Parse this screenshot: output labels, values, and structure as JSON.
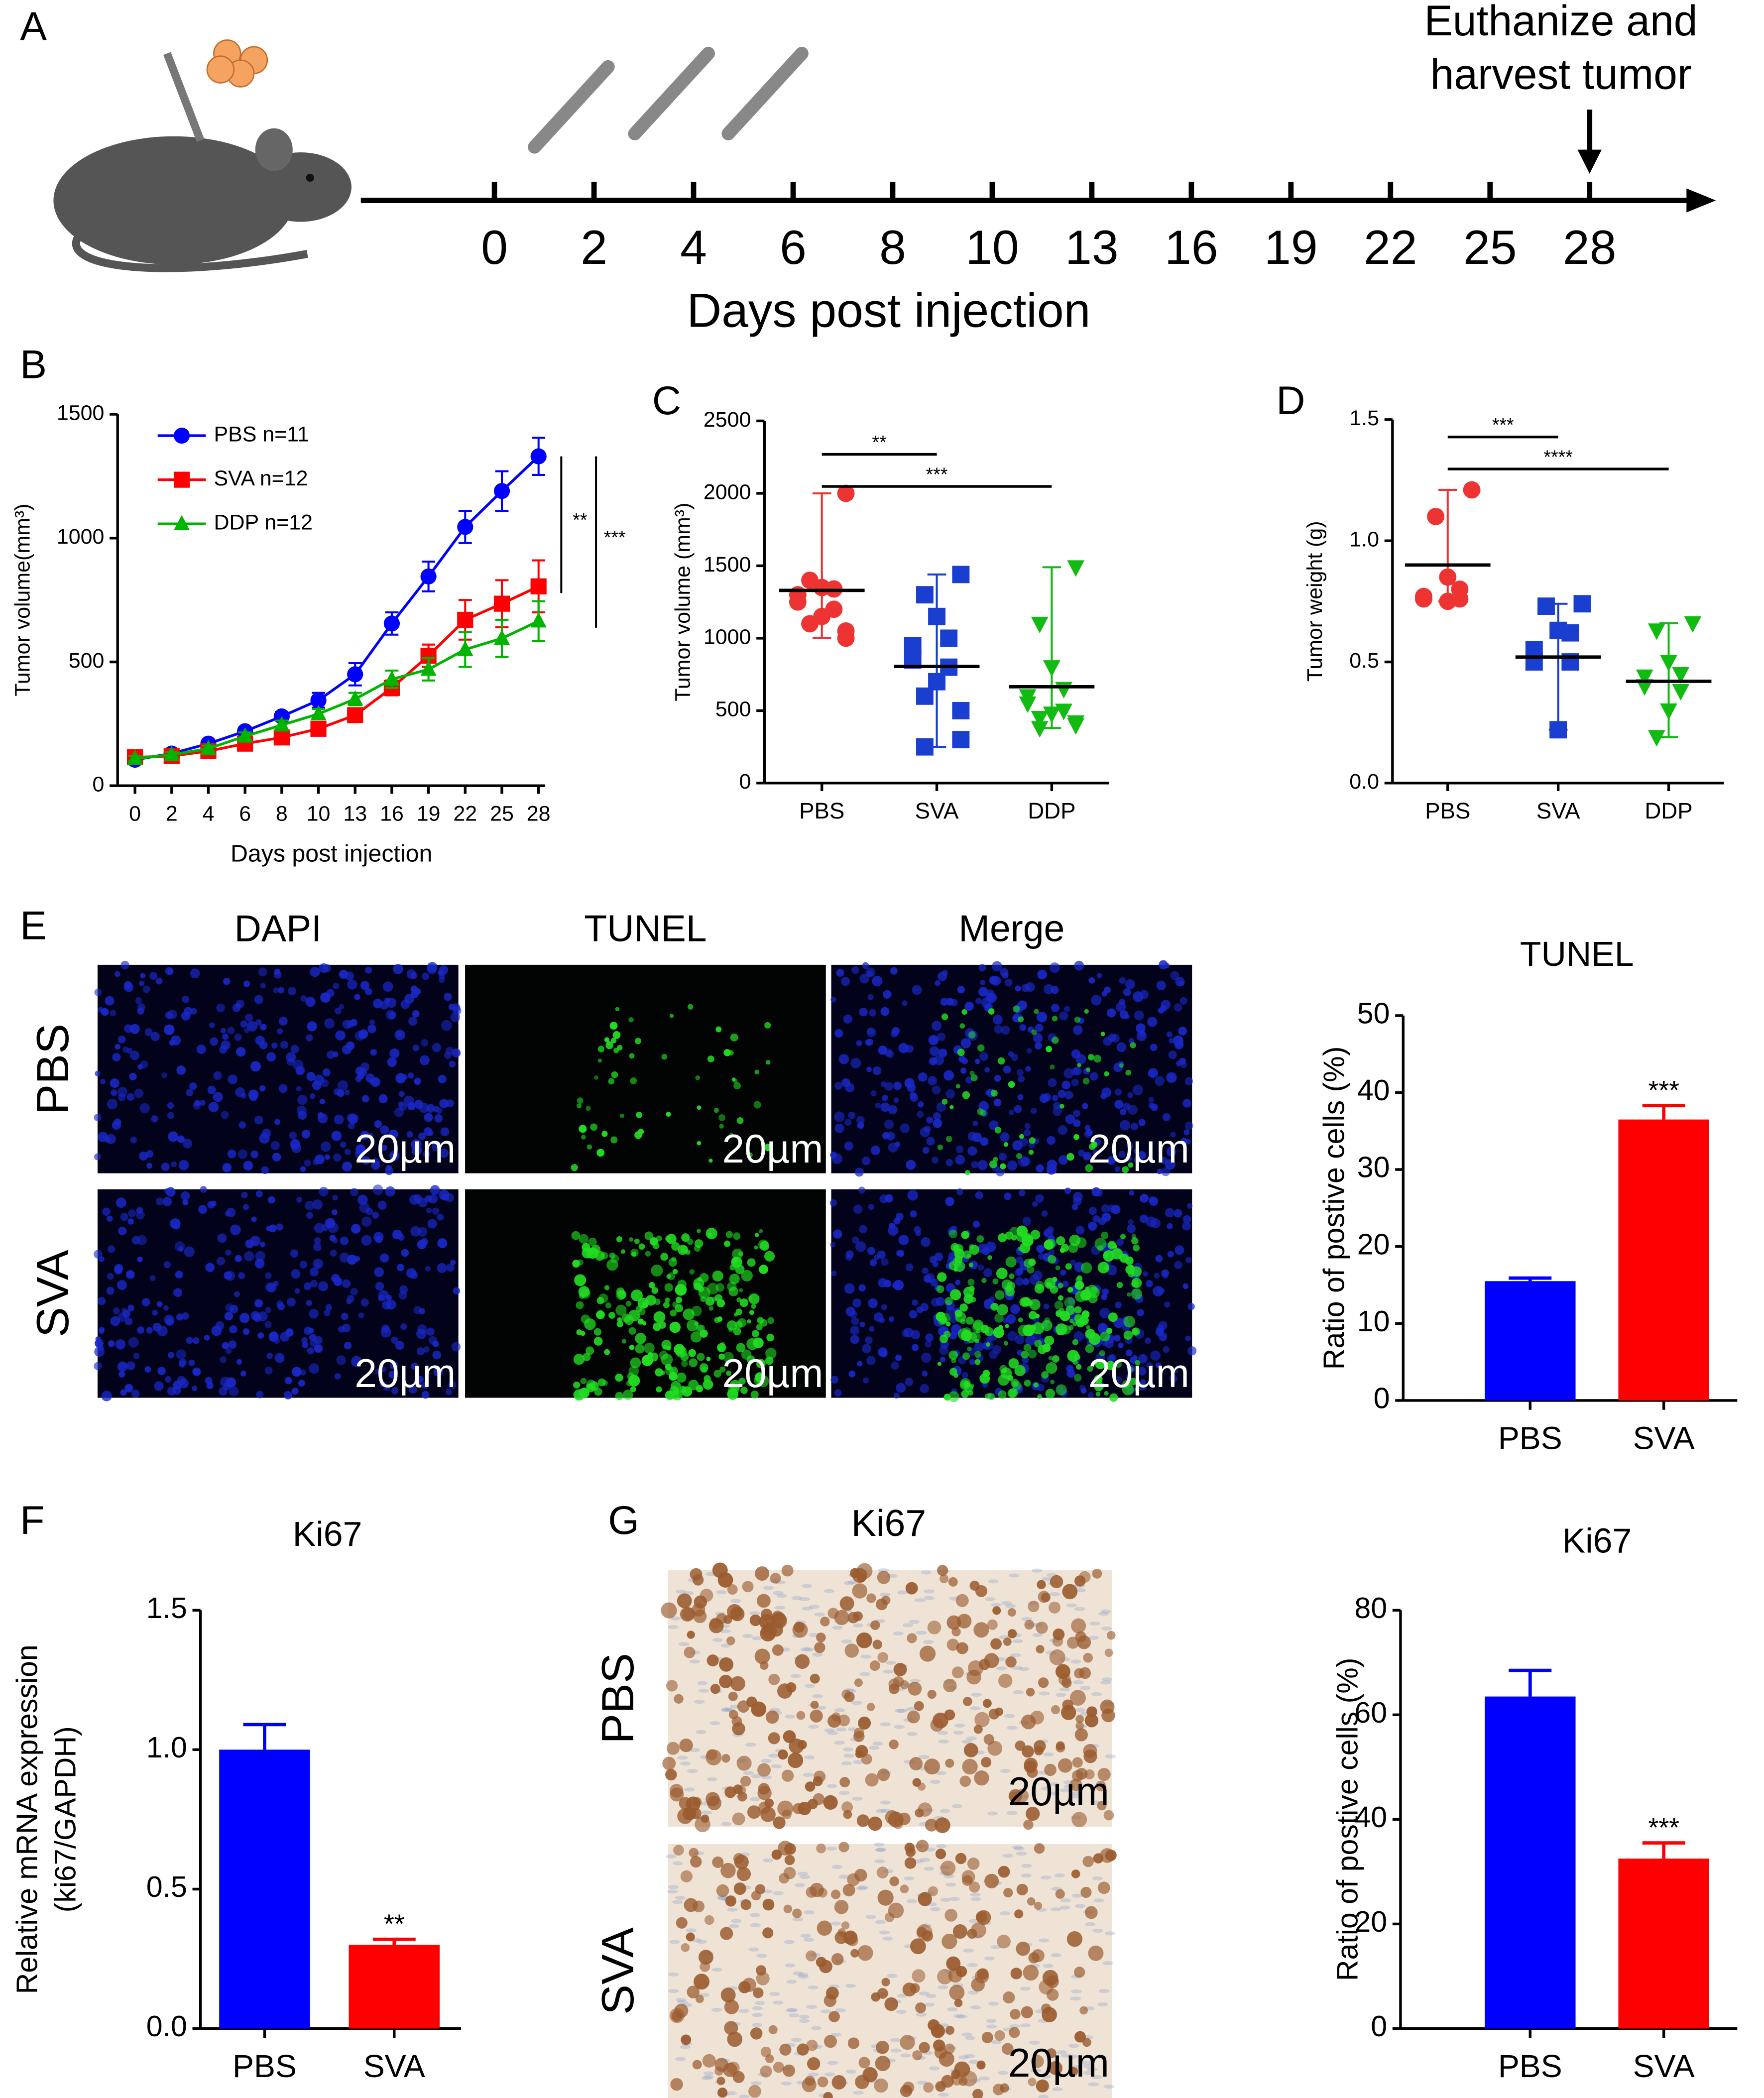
{
  "panel_labels": [
    "A",
    "B",
    "C",
    "D",
    "E",
    "F",
    "G"
  ],
  "timeline": {
    "days": [
      0,
      2,
      4,
      6,
      8,
      10,
      13,
      16,
      19,
      22,
      25,
      28
    ],
    "xlabel": "Days post injection",
    "annotation": [
      "Euthanize and",
      "harvest tumor"
    ]
  },
  "images": {
    "E": {
      "columns": [
        "DAPI",
        "TUNEL",
        "Merge"
      ],
      "rows": [
        "PBS",
        "SVA"
      ],
      "scale_bar": "20µm"
    },
    "G": {
      "title": "Ki67",
      "rows": [
        "PBS",
        "SVA"
      ],
      "scale_bar": "20µm"
    }
  },
  "chart_data": [
    {
      "type": "line",
      "xlabel": "Days post injection",
      "ylabel": "Tumor volume(mm³)",
      "x": [
        0,
        2,
        4,
        6,
        8,
        10,
        13,
        16,
        19,
        22,
        25,
        28
      ],
      "ylim": [
        0,
        1500
      ],
      "yticks": [
        0,
        500,
        1000,
        1500
      ],
      "series": [
        {
          "name": "PBS  n=11",
          "color": "#0000ff",
          "marker": "circle",
          "values": [
            105,
            130,
            170,
            220,
            280,
            345,
            450,
            655,
            845,
            1045,
            1190,
            1330
          ],
          "errors": [
            15,
            15,
            15,
            15,
            18,
            30,
            45,
            45,
            60,
            65,
            80,
            75
          ]
        },
        {
          "name": "SVA n=12",
          "color": "#ff0000",
          "marker": "square",
          "values": [
            115,
            120,
            140,
            170,
            195,
            230,
            285,
            395,
            525,
            670,
            735,
            805
          ],
          "errors": [
            10,
            10,
            10,
            12,
            15,
            15,
            20,
            30,
            45,
            80,
            95,
            105
          ]
        },
        {
          "name": "DDP n=12",
          "color": "#00b400",
          "marker": "triangle-up",
          "values": [
            110,
            125,
            150,
            200,
            245,
            290,
            350,
            430,
            470,
            550,
            595,
            665
          ],
          "errors": [
            10,
            10,
            12,
            15,
            18,
            20,
            25,
            35,
            45,
            70,
            75,
            80
          ]
        }
      ],
      "annotations": [
        "**",
        "***"
      ]
    },
    {
      "type": "scatter",
      "ylabel": "Tumor volume (mm³)",
      "categories": [
        "PBS",
        "SVA",
        "DDP"
      ],
      "ylim": [
        0,
        2500
      ],
      "yticks": [
        0,
        500,
        1000,
        1500,
        2000,
        2500
      ],
      "groups": [
        {
          "color": "#ee3333",
          "marker": "circle",
          "values": [
            2000,
            1400,
            1350,
            1340,
            1300,
            1250,
            1200,
            1150,
            1100,
            1050,
            1000
          ],
          "mean": 1330
        },
        {
          "color": "#1a3fd0",
          "marker": "square",
          "values": [
            1440,
            1300,
            1150,
            1000,
            950,
            850,
            800,
            700,
            600,
            500,
            300,
            250
          ],
          "mean": 805
        },
        {
          "color": "#11bb11",
          "marker": "triangle-down",
          "values": [
            1490,
            1100,
            800,
            650,
            600,
            550,
            500,
            480,
            450,
            420,
            400,
            380
          ],
          "mean": 665
        }
      ],
      "comparisons": [
        {
          "groups": [
            "PBS",
            "SVA"
          ],
          "label": "**"
        },
        {
          "groups": [
            "PBS",
            "DDP"
          ],
          "label": "***"
        }
      ]
    },
    {
      "type": "scatter",
      "ylabel": "Tumor weight (g)",
      "categories": [
        "PBS",
        "SVA",
        "DDP"
      ],
      "ylim": [
        0,
        1.5
      ],
      "yticks": [
        {
          "value": 0,
          "label": "0.0"
        },
        0.5,
        {
          "value": 1,
          "label": "1.0"
        },
        1.5
      ],
      "groups": [
        {
          "color": "#ee3333",
          "marker": "circle",
          "values": [
            1.21,
            1.1,
            0.85,
            0.8,
            0.77,
            0.76,
            0.76,
            0.75
          ],
          "mean": 0.9
        },
        {
          "color": "#1a3fd0",
          "marker": "square",
          "values": [
            0.74,
            0.73,
            0.63,
            0.62,
            0.55,
            0.5,
            0.5,
            0.22
          ],
          "mean": 0.52
        },
        {
          "color": "#11bb11",
          "marker": "triangle-down",
          "values": [
            0.66,
            0.63,
            0.5,
            0.45,
            0.44,
            0.4,
            0.38,
            0.3,
            0.19
          ],
          "mean": 0.42
        }
      ],
      "comparisons": [
        {
          "groups": [
            "PBS",
            "SVA"
          ],
          "label": "***"
        },
        {
          "groups": [
            "PBS",
            "DDP"
          ],
          "label": "****"
        }
      ]
    },
    {
      "type": "bar",
      "title": "TUNEL",
      "ylabel": [
        "Ratio of postive cells (%)"
      ],
      "categories": [
        "PBS",
        "SVA"
      ],
      "values": [
        15.5,
        36.5
      ],
      "errors": [
        0.4,
        1.8
      ],
      "colors": [
        "#0000ff",
        "#ff0000"
      ],
      "ylim": [
        0,
        50
      ],
      "yticks": [
        0,
        10,
        20,
        30,
        40,
        50
      ],
      "significance": [
        null,
        "***"
      ]
    },
    {
      "type": "bar",
      "title": "Ki67",
      "ylabel": [
        "Relative mRNA expression",
        "(ki67/GAPDH)"
      ],
      "categories": [
        "PBS",
        "SVA"
      ],
      "values": [
        1.0,
        0.3
      ],
      "errors": [
        0.09,
        0.02
      ],
      "colors": [
        "#0000ff",
        "#ff0000"
      ],
      "ylim": [
        0,
        1.5
      ],
      "yticks": [
        {
          "value": 0,
          "label": "0.0"
        },
        0.5,
        {
          "value": 1,
          "label": "1.0"
        },
        1.5
      ],
      "significance": [
        null,
        "**"
      ]
    },
    {
      "type": "bar",
      "title": "Ki67",
      "ylabel": [
        "Ratio of postive cells (%)"
      ],
      "categories": [
        "PBS",
        "SVA"
      ],
      "values": [
        63.5,
        32.5
      ],
      "errors": [
        5,
        3
      ],
      "colors": [
        "#0000ff",
        "#ff0000"
      ],
      "ylim": [
        0,
        80
      ],
      "yticks": [
        0,
        20,
        40,
        60,
        80
      ],
      "significance": [
        null,
        "***"
      ]
    }
  ]
}
